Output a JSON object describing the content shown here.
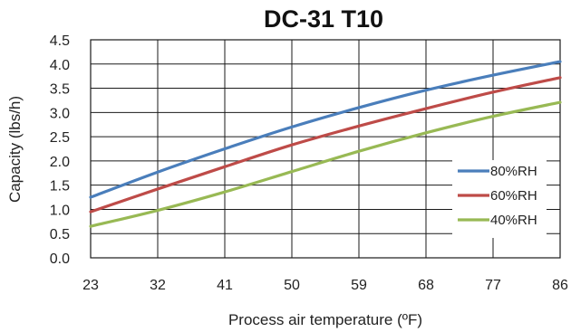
{
  "chart_data": {
    "type": "line",
    "title": "DC-31 T10",
    "xlabel": "Process air temperature (ºF)",
    "ylabel": "Capacity (lbs/h)",
    "x": [
      23,
      32,
      41,
      50,
      59,
      68,
      77,
      86
    ],
    "x_ticks": [
      "23",
      "32",
      "41",
      "50",
      "59",
      "68",
      "77",
      "86"
    ],
    "y_ticks": [
      "0.0",
      "0.5",
      "1.0",
      "1.5",
      "2.0",
      "2.5",
      "3.0",
      "3.5",
      "4.0",
      "4.5"
    ],
    "xlim": [
      23,
      86
    ],
    "ylim": [
      0,
      4.5
    ],
    "grid": true,
    "legend_position": "bottom-right",
    "series": [
      {
        "name": "80%RH",
        "color": "#4a7ebb",
        "values": [
          1.25,
          1.77,
          2.25,
          2.7,
          3.1,
          3.46,
          3.77,
          4.05
        ]
      },
      {
        "name": "60%RH",
        "color": "#be4b48",
        "values": [
          0.95,
          1.42,
          1.88,
          2.33,
          2.72,
          3.08,
          3.42,
          3.72
        ]
      },
      {
        "name": "40%RH",
        "color": "#98b954",
        "values": [
          0.65,
          0.98,
          1.36,
          1.78,
          2.2,
          2.58,
          2.92,
          3.21
        ]
      }
    ]
  }
}
